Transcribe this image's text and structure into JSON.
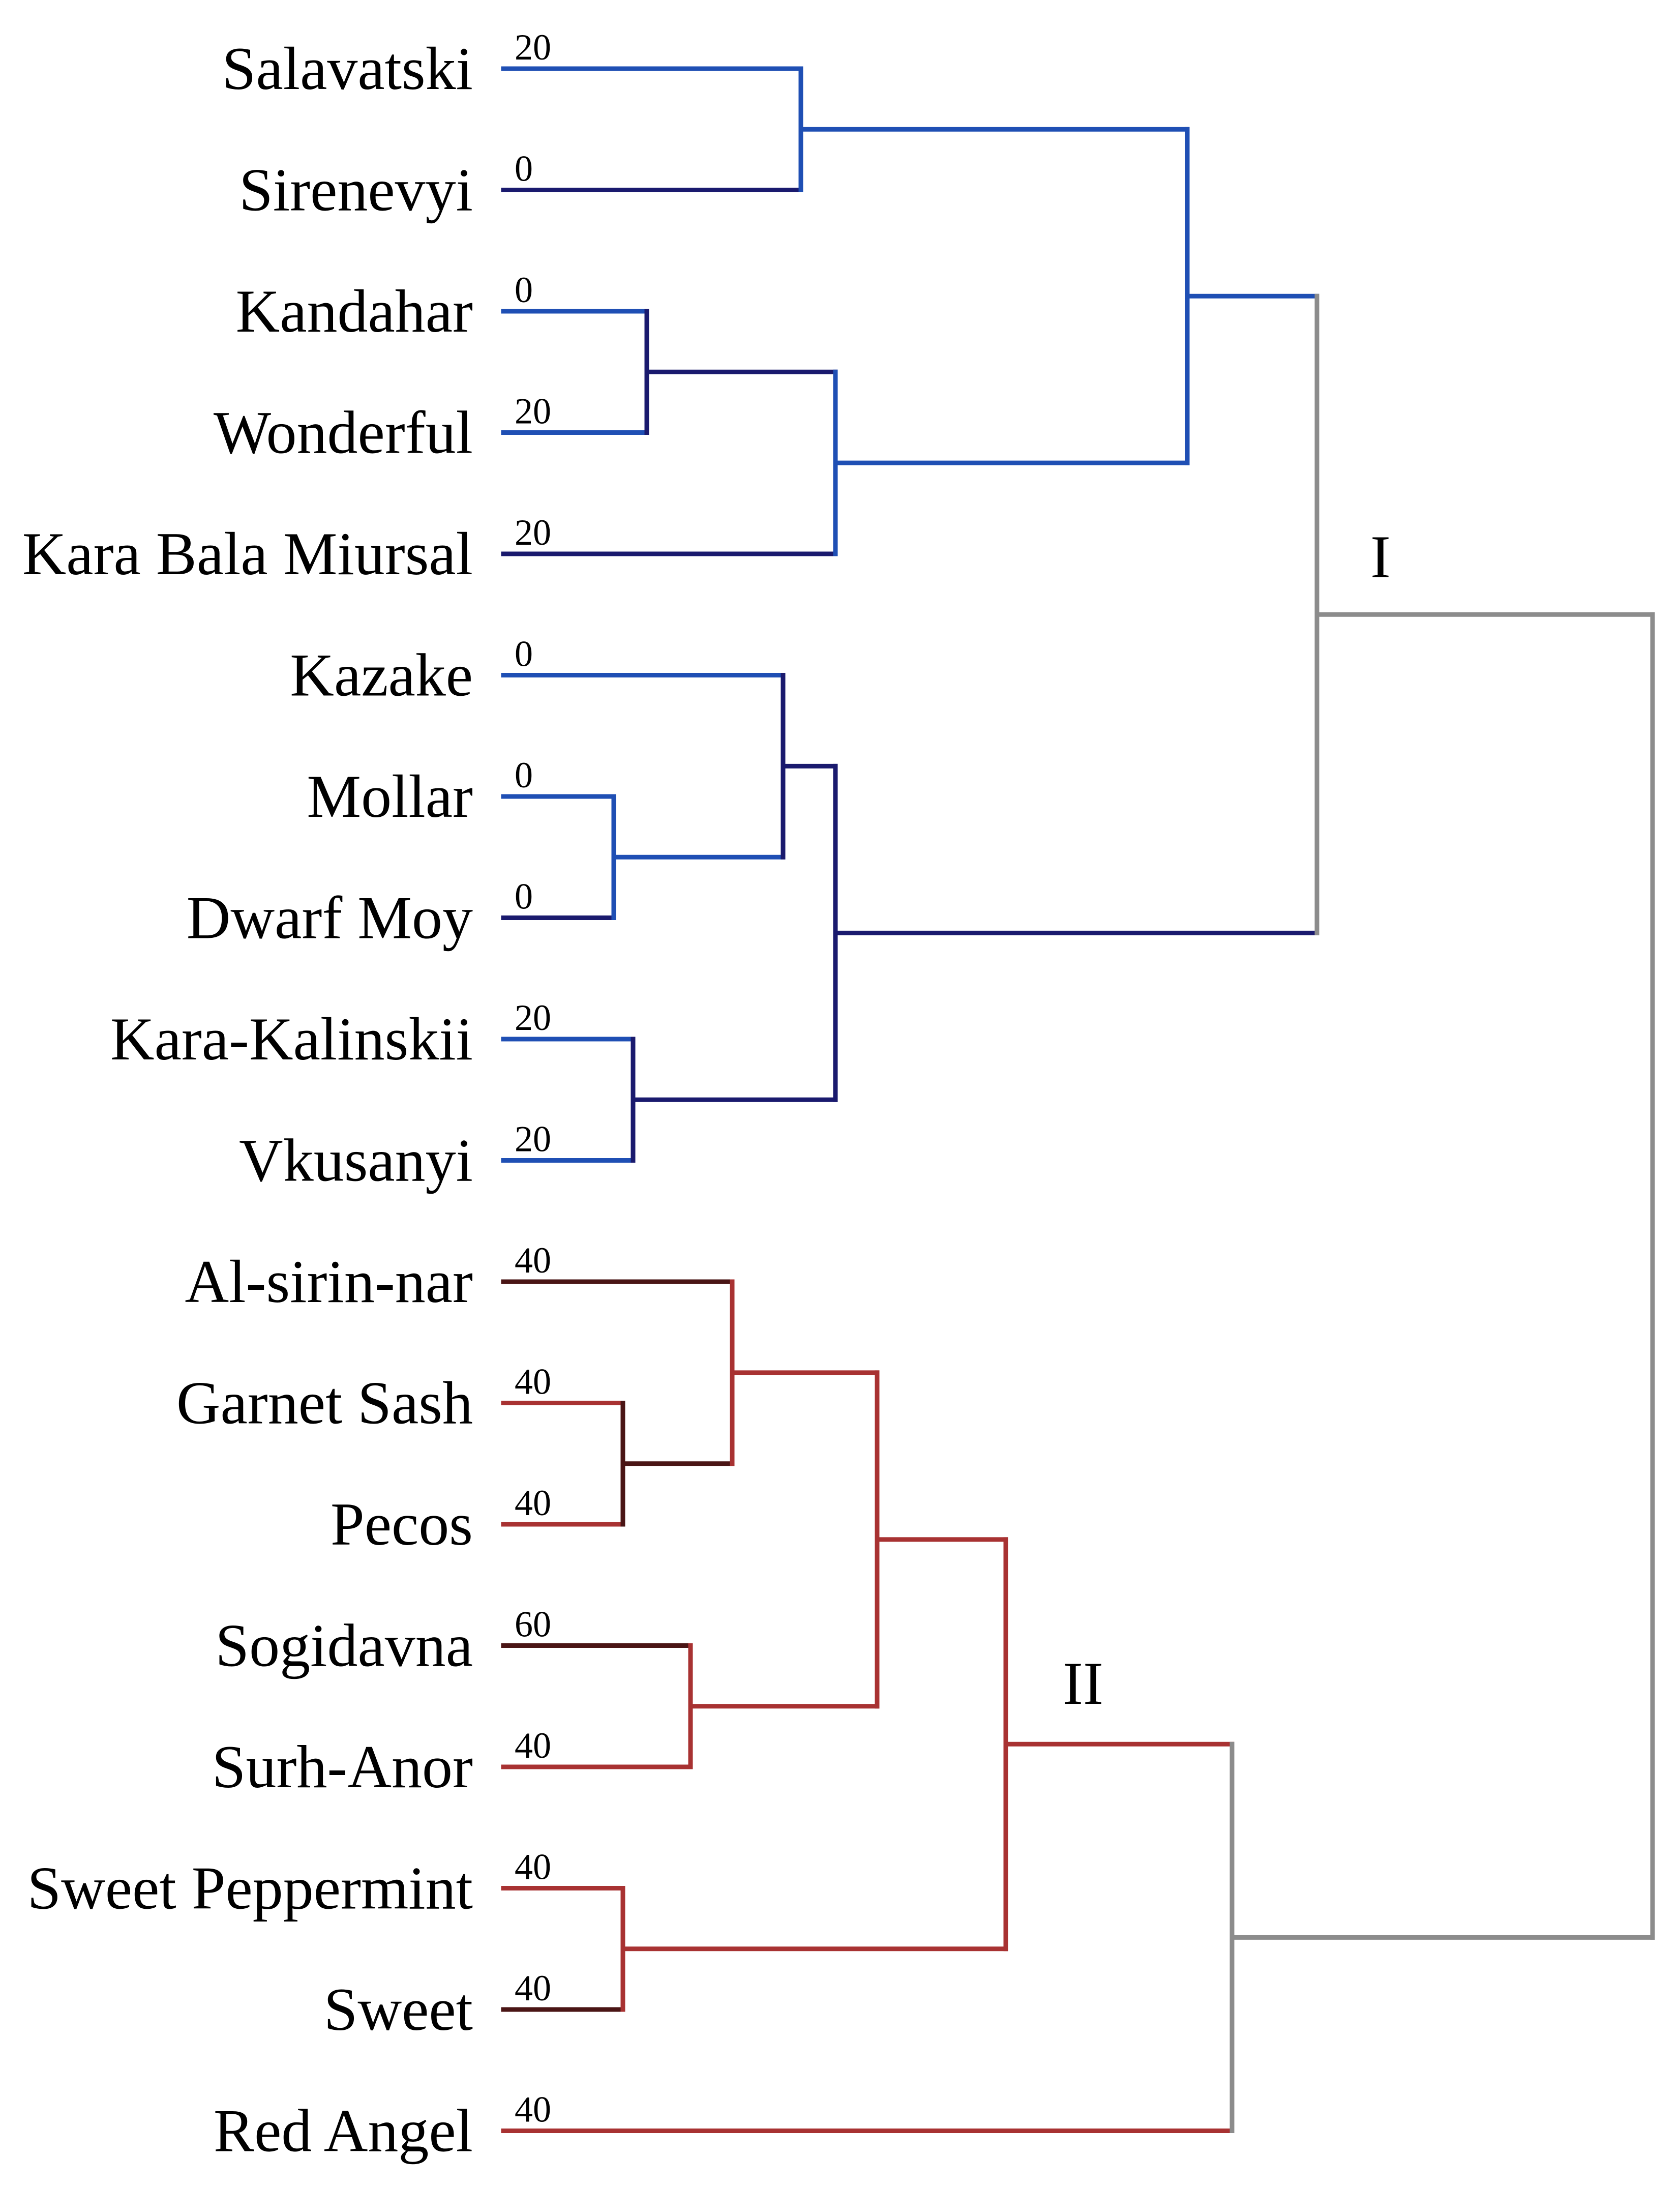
{
  "leaves": [
    {
      "label": "Salavatski",
      "value": "20"
    },
    {
      "label": "Sirenevyi",
      "value": "0"
    },
    {
      "label": "Kandahar",
      "value": "0"
    },
    {
      "label": "Wonderful",
      "value": "20"
    },
    {
      "label": "Kara Bala Miursal",
      "value": "20"
    },
    {
      "label": "Kazake",
      "value": "0"
    },
    {
      "label": "Mollar",
      "value": "0"
    },
    {
      "label": "Dwarf Moy",
      "value": "0"
    },
    {
      "label": "Kara-Kalinskii",
      "value": "20"
    },
    {
      "label": "Vkusanyi",
      "value": "20"
    },
    {
      "label": "Al-sirin-nar",
      "value": "40"
    },
    {
      "label": "Garnet Sash",
      "value": "40"
    },
    {
      "label": "Pecos",
      "value": "40"
    },
    {
      "label": "Sogidavna",
      "value": "60"
    },
    {
      "label": "Surh-Anor",
      "value": "40"
    },
    {
      "label": "Sweet Peppermint",
      "value": "40"
    },
    {
      "label": "Sweet",
      "value": "40"
    },
    {
      "label": "Red Angel",
      "value": "40"
    }
  ],
  "clusters": {
    "cluster_1": "I",
    "cluster_2": "II"
  },
  "colors": {
    "blue": "#1f4fb4",
    "navy": "#1a1a6e",
    "red": "#a83232",
    "dark_red": "#4a1515",
    "gray": "#8c8c8c"
  }
}
